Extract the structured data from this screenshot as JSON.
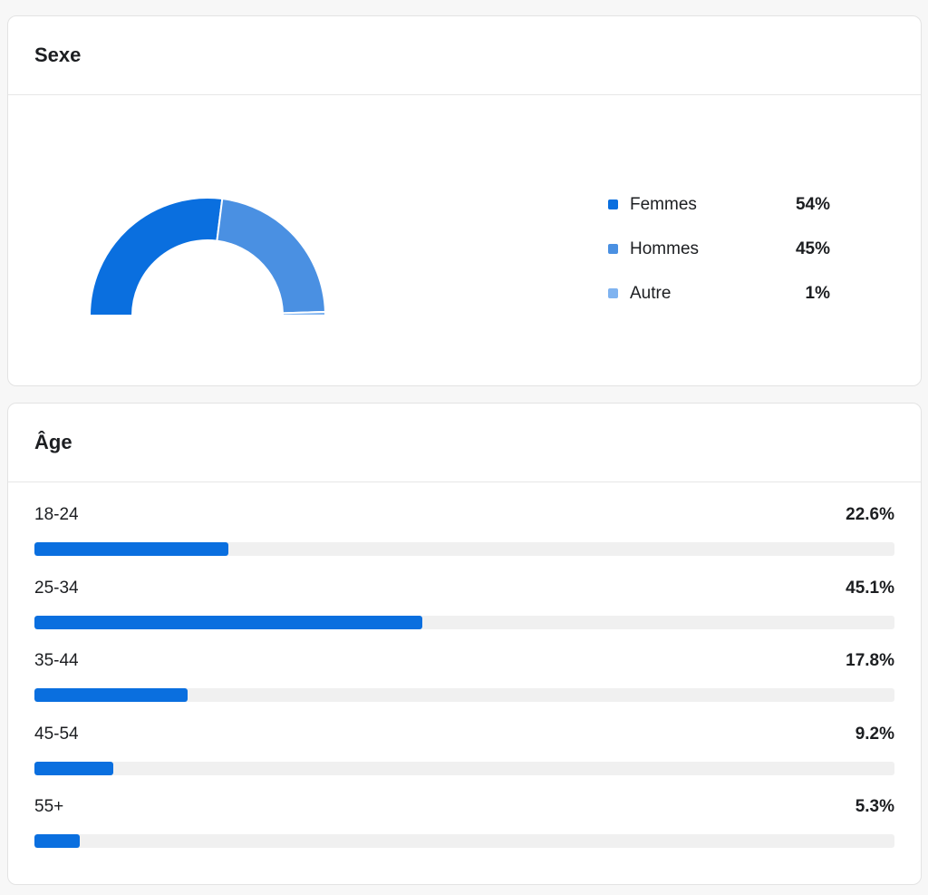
{
  "gender": {
    "title": "Sexe",
    "items": [
      {
        "label": "Femmes",
        "value": "54%",
        "share": 54,
        "color": "#0a6fdf"
      },
      {
        "label": "Hommes",
        "value": "45%",
        "share": 45,
        "color": "#4a90e2"
      },
      {
        "label": "Autre",
        "value": "1%",
        "share": 1,
        "color": "#7fb3f0"
      }
    ]
  },
  "age": {
    "title": "Âge",
    "items": [
      {
        "label": "18-24",
        "value": "22.6%",
        "share": 22.6
      },
      {
        "label": "25-34",
        "value": "45.1%",
        "share": 45.1
      },
      {
        "label": "35-44",
        "value": "17.8%",
        "share": 17.8
      },
      {
        "label": "45-54",
        "value": "9.2%",
        "share": 9.2
      },
      {
        "label": "55+",
        "value": "5.3%",
        "share": 5.3
      }
    ]
  },
  "chart_data": [
    {
      "type": "pie",
      "title": "Sexe",
      "categories": [
        "Femmes",
        "Hommes",
        "Autre"
      ],
      "values": [
        54,
        45,
        1
      ]
    },
    {
      "type": "bar",
      "title": "Âge",
      "categories": [
        "18-24",
        "25-34",
        "35-44",
        "45-54",
        "55+"
      ],
      "values": [
        22.6,
        45.1,
        17.8,
        9.2,
        5.3
      ],
      "ylim": [
        0,
        100
      ]
    }
  ]
}
